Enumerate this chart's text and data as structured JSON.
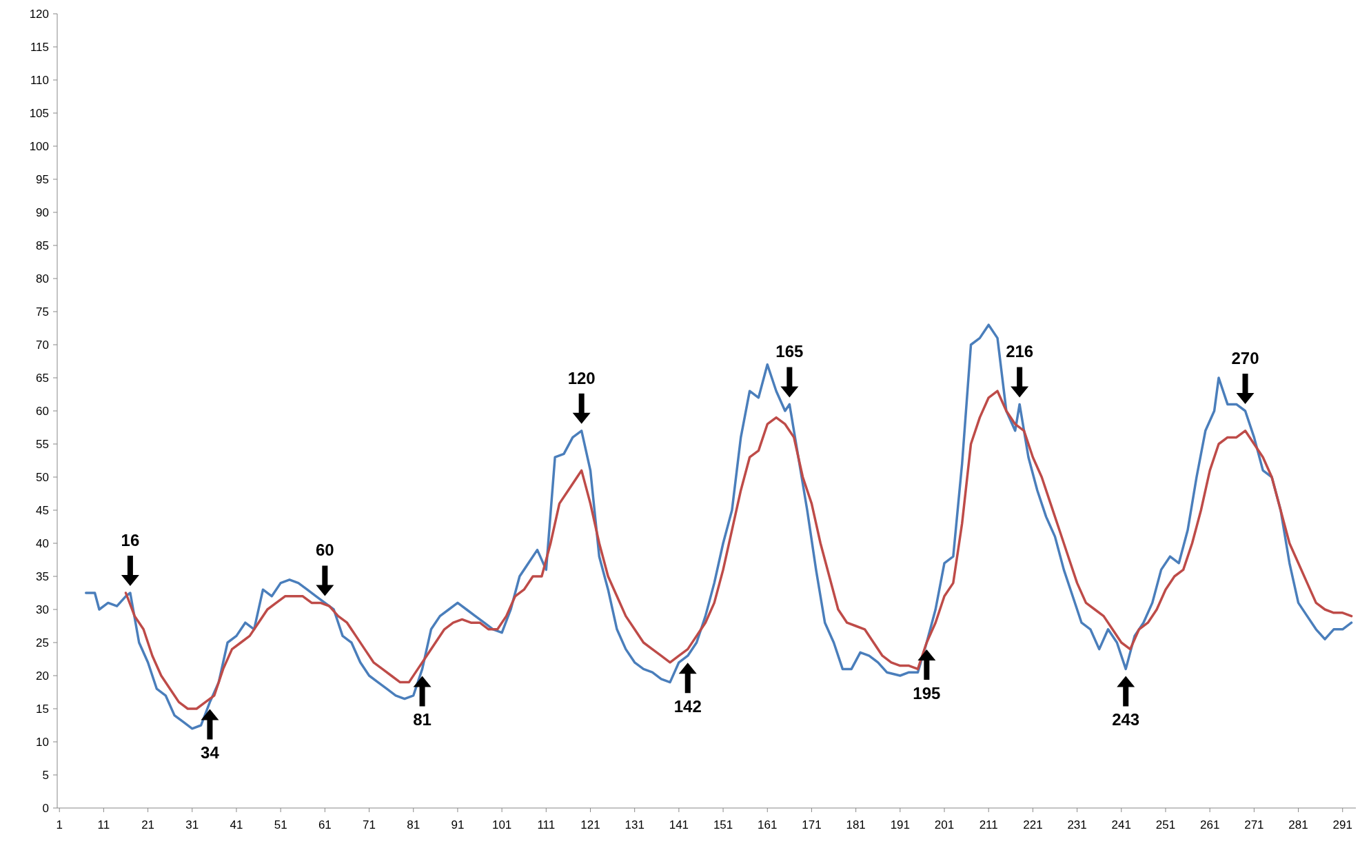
{
  "chart_data": {
    "type": "line",
    "xlim": [
      0.5,
      294
    ],
    "xticks": [
      1,
      11,
      21,
      31,
      41,
      51,
      61,
      71,
      81,
      91,
      101,
      111,
      121,
      131,
      141,
      151,
      161,
      171,
      181,
      191,
      201,
      211,
      221,
      231,
      241,
      251,
      261,
      271,
      281,
      291
    ],
    "ylim": [
      0,
      120
    ],
    "yticks": [
      0,
      5,
      10,
      15,
      20,
      25,
      30,
      35,
      40,
      45,
      50,
      55,
      60,
      65,
      70,
      75,
      80,
      85,
      90,
      95,
      100,
      105,
      110,
      115,
      120
    ],
    "grid": false,
    "marker": "none",
    "line_style": "solid",
    "series": [
      {
        "color": "#4a7ebb",
        "x": [
          7,
          9,
          10,
          12,
          14,
          16,
          17,
          19,
          21,
          23,
          25,
          27,
          29,
          31,
          33,
          35,
          37,
          39,
          41,
          43,
          45,
          47,
          49,
          51,
          53,
          55,
          57,
          59,
          61,
          63,
          65,
          67,
          69,
          71,
          73,
          75,
          77,
          79,
          81,
          83,
          85,
          87,
          89,
          91,
          93,
          95,
          97,
          99,
          101,
          103,
          105,
          107,
          109,
          111,
          113,
          115,
          117,
          119,
          121,
          123,
          125,
          127,
          129,
          131,
          133,
          135,
          137,
          139,
          141,
          143,
          145,
          147,
          149,
          151,
          153,
          155,
          157,
          159,
          161,
          163,
          165,
          166,
          168,
          170,
          172,
          174,
          176,
          178,
          180,
          182,
          184,
          186,
          188,
          191,
          193,
          195,
          197,
          199,
          201,
          203,
          205,
          207,
          209,
          211,
          213,
          215,
          217,
          218,
          220,
          222,
          224,
          226,
          228,
          230,
          232,
          234,
          236,
          238,
          240,
          242,
          244,
          246,
          248,
          250,
          252,
          254,
          256,
          258,
          260,
          262,
          263,
          265,
          267,
          269,
          271,
          273,
          275,
          277,
          279,
          281,
          283,
          285,
          287,
          289,
          291,
          293
        ],
        "values": [
          32.5,
          32.5,
          30,
          31,
          30.5,
          32,
          32.5,
          25,
          22,
          18,
          17,
          14,
          13,
          12,
          12.5,
          16,
          19,
          25,
          26,
          28,
          27,
          33,
          32,
          34,
          34.5,
          34,
          33,
          32,
          31,
          30,
          26,
          25,
          22,
          20,
          19,
          18,
          17,
          16.5,
          17,
          21,
          27,
          29,
          30,
          31,
          30,
          29,
          28,
          27,
          26.5,
          30,
          35,
          37,
          39,
          36,
          53,
          53.5,
          56,
          57,
          51,
          38,
          33,
          27,
          24,
          22,
          21,
          20.5,
          19.5,
          19,
          22,
          23,
          25,
          29,
          34,
          40,
          45,
          56,
          63,
          62,
          67,
          63,
          60,
          61,
          53,
          45,
          36,
          28,
          25,
          21,
          21,
          23.5,
          23,
          22,
          20.5,
          20,
          20.5,
          20.5,
          25,
          30,
          37,
          38,
          52,
          70,
          71,
          73,
          71,
          60,
          57,
          61,
          53,
          48,
          44,
          41,
          36,
          32,
          28,
          27,
          24,
          27,
          25,
          21,
          26,
          28,
          31,
          36,
          38,
          37,
          42,
          50,
          57,
          60,
          65,
          61,
          61,
          60,
          56,
          51,
          50,
          45,
          37,
          31,
          29,
          27,
          25.5,
          27,
          27,
          28
        ]
      },
      {
        "color": "#be4b48",
        "x": [
          16,
          18,
          20,
          22,
          24,
          26,
          28,
          30,
          32,
          34,
          36,
          38,
          40,
          42,
          44,
          46,
          48,
          50,
          52,
          54,
          56,
          58,
          60,
          62,
          64,
          66,
          68,
          70,
          72,
          74,
          76,
          78,
          80,
          82,
          84,
          86,
          88,
          90,
          92,
          94,
          96,
          98,
          100,
          102,
          104,
          106,
          108,
          110,
          112,
          114,
          116,
          118,
          119,
          121,
          123,
          125,
          127,
          129,
          131,
          133,
          135,
          137,
          139,
          141,
          143,
          145,
          147,
          149,
          151,
          153,
          155,
          157,
          159,
          161,
          163,
          165,
          167,
          169,
          171,
          173,
          175,
          177,
          179,
          181,
          183,
          185,
          187,
          189,
          191,
          193,
          195,
          197,
          199,
          201,
          203,
          205,
          207,
          209,
          211,
          213,
          215,
          217,
          219,
          221,
          223,
          225,
          227,
          229,
          231,
          233,
          235,
          237,
          239,
          241,
          243,
          245,
          247,
          249,
          251,
          253,
          255,
          257,
          259,
          261,
          263,
          265,
          267,
          269,
          271,
          273,
          275,
          277,
          279,
          281,
          283,
          285,
          287,
          289,
          291,
          293
        ],
        "values": [
          32.5,
          29,
          27,
          23,
          20,
          18,
          16,
          15,
          15,
          16,
          17,
          21,
          24,
          25,
          26,
          28,
          30,
          31,
          32,
          32,
          32,
          31,
          31,
          30.5,
          29,
          28,
          26,
          24,
          22,
          21,
          20,
          19,
          19,
          21,
          23,
          25,
          27,
          28,
          28.5,
          28,
          28,
          27,
          27,
          29,
          32,
          33,
          35,
          35,
          40,
          46,
          48,
          50,
          51,
          46,
          40,
          35,
          32,
          29,
          27,
          25,
          24,
          23,
          22,
          23,
          24,
          26,
          28,
          31,
          36,
          42,
          48,
          53,
          54,
          58,
          59,
          58,
          56,
          50,
          46,
          40,
          35,
          30,
          28,
          27.5,
          27,
          25,
          23,
          22,
          21.5,
          21.5,
          21,
          25,
          28,
          32,
          34,
          43,
          55,
          59,
          62,
          63,
          60,
          58,
          57,
          53,
          50,
          46,
          42,
          38,
          34,
          31,
          30,
          29,
          27,
          25,
          24,
          27,
          28,
          30,
          33,
          35,
          36,
          40,
          45,
          51,
          55,
          56,
          56,
          57,
          55,
          53,
          50,
          45,
          40,
          37,
          34,
          31,
          30,
          29.5,
          29.5,
          29
        ]
      }
    ],
    "annotations": [
      {
        "text": "16",
        "x": 17,
        "y": 32.5
      },
      {
        "text": "34",
        "x": 35,
        "y": 16
      },
      {
        "text": "60",
        "x": 61,
        "y": 31
      },
      {
        "text": "81",
        "x": 83,
        "y": 21
      },
      {
        "text": "120",
        "x": 119,
        "y": 57
      },
      {
        "text": "142",
        "x": 143,
        "y": 23
      },
      {
        "text": "165",
        "x": 166,
        "y": 61
      },
      {
        "text": "195",
        "x": 197,
        "y": 25
      },
      {
        "text": "216",
        "x": 218,
        "y": 61
      },
      {
        "text": "243",
        "x": 242,
        "y": 21
      },
      {
        "text": "270",
        "x": 269,
        "y": 60
      }
    ]
  }
}
